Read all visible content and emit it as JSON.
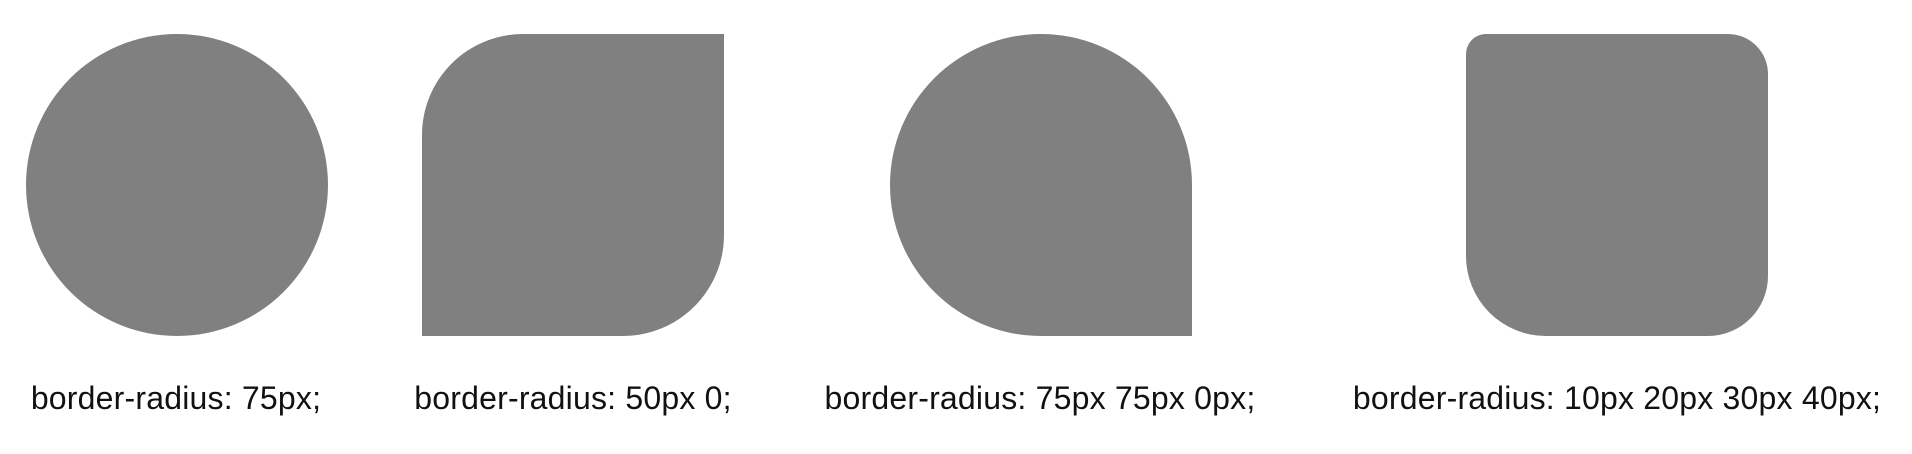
{
  "examples": [
    {
      "caption": "border-radius: 75px;"
    },
    {
      "caption": "border-radius: 50px 0;"
    },
    {
      "caption": "border-radius: 75px 75px 0px;"
    },
    {
      "caption": "border-radius: 10px 20px 30px 40px;"
    }
  ],
  "colors": {
    "shape_fill": "#808080",
    "background": "#ffffff",
    "text": "#111111"
  }
}
